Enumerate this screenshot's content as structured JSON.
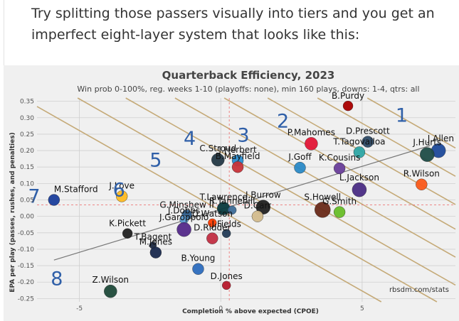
{
  "intro_text": "Try splitting those passers visually into tiers and you get an imperfect eight-layer system that looks like this:",
  "chart_data": {
    "type": "scatter",
    "title": "Quarterback Efficiency, 2023",
    "subtitle": "Win prob 0-100%, reg. weeks 1-10 (playoffs: none), min 160 plays, downs: 1-4, qtrs: all",
    "xlabel": "Completion % above expected (CPOE)",
    "ylabel": "EPA per play (passes, rushes, and penalties)",
    "credit": "rbsdm.com/stats",
    "xlim": [
      -6.5,
      8.3
    ],
    "ylim": [
      -0.26,
      0.36
    ],
    "x_ticks": [
      -5,
      0,
      5
    ],
    "y_ticks": [
      -0.25,
      -0.2,
      -0.15,
      -0.1,
      -0.05,
      0.0,
      0.05,
      0.1,
      0.15,
      0.2,
      0.25,
      0.3,
      0.35
    ],
    "grid": true,
    "mean_x": 0.3,
    "mean_y": 0.035,
    "trend_line": [
      [
        -5.9,
        -0.133
      ],
      [
        7.4,
        0.215
      ]
    ],
    "tier_line_slope": -0.0488,
    "tier_line_intercepts": [
      0.613,
      0.527,
      0.441,
      0.366,
      0.281,
      0.196,
      0.113,
      0.017
    ],
    "tier_labels": [
      {
        "label": "1",
        "x": 6.4,
        "y": 0.307
      },
      {
        "label": "2",
        "x": 2.2,
        "y": 0.29
      },
      {
        "label": "3",
        "x": 0.8,
        "y": 0.247
      },
      {
        "label": "4",
        "x": -1.1,
        "y": 0.237
      },
      {
        "label": "5",
        "x": -2.3,
        "y": 0.171
      },
      {
        "label": "6",
        "x": -3.6,
        "y": 0.08
      },
      {
        "label": "7",
        "x": -6.6,
        "y": 0.061
      },
      {
        "label": "8",
        "x": -5.8,
        "y": -0.19
      }
    ],
    "points": [
      {
        "name": "B.Purdy",
        "x": 4.5,
        "y": 0.336,
        "color": "#aa0000",
        "r": 7
      },
      {
        "name": "D.Prescott",
        "x": 5.2,
        "y": 0.227,
        "color": "#2e4a66",
        "r": 8
      },
      {
        "name": "J.Allen",
        "x": 7.7,
        "y": 0.2,
        "color": "#1e4a9a",
        "r": 10
      },
      {
        "name": "J.Hurts",
        "x": 7.3,
        "y": 0.188,
        "color": "#1f4d48",
        "r": 10
      },
      {
        "name": "P.Mahomes",
        "x": 3.2,
        "y": 0.221,
        "color": "#e31837",
        "r": 9
      },
      {
        "name": "T.Tagovailoa",
        "x": 4.9,
        "y": 0.195,
        "color": "#2fa7a6",
        "r": 8
      },
      {
        "name": "C.Stroud",
        "x": -0.1,
        "y": 0.172,
        "color": "#243946",
        "r": 9
      },
      {
        "name": "J.Herbert",
        "x": 0.6,
        "y": 0.17,
        "color": "#2c8fd1",
        "r": 8
      },
      {
        "name": "B.Mayfield",
        "x": 0.6,
        "y": 0.15,
        "color": "#c8343a",
        "r": 8
      },
      {
        "name": "J.Goff",
        "x": 2.8,
        "y": 0.148,
        "color": "#2b8ac7",
        "r": 8
      },
      {
        "name": "K.Cousins",
        "x": 4.2,
        "y": 0.146,
        "color": "#6a3f9a",
        "r": 8
      },
      {
        "name": "R.Wilson",
        "x": 7.1,
        "y": 0.097,
        "color": "#fb5a1a",
        "r": 8
      },
      {
        "name": "L.Jackson",
        "x": 4.9,
        "y": 0.081,
        "color": "#4b2e85",
        "r": 10
      },
      {
        "name": "M.Stafford",
        "x": -5.9,
        "y": 0.05,
        "color": "#1c3f9c",
        "r": 8
      },
      {
        "name": "J.Love",
        "x": -3.5,
        "y": 0.061,
        "color": "#ffbb22",
        "r": 8
      },
      {
        "name": "T.Lawrence",
        "x": 0.1,
        "y": 0.024,
        "color": "#0b3a3f",
        "r": 9
      },
      {
        "name": "R.Tannehill",
        "x": 0.4,
        "y": 0.019,
        "color": "#3f6d98",
        "r": 6
      },
      {
        "name": "J.Burrow",
        "x": 1.5,
        "y": 0.028,
        "color": "#222222",
        "r": 10
      },
      {
        "name": "S.Howell",
        "x": 3.6,
        "y": 0.02,
        "color": "#6a2a1a",
        "r": 11
      },
      {
        "name": "G.Smith",
        "x": 4.2,
        "y": 0.013,
        "color": "#69be28",
        "r": 8
      },
      {
        "name": "G.Minshew II",
        "x": -1.2,
        "y": 0.005,
        "color": "#2f5f8f",
        "r": 7
      },
      {
        "name": "D.Carr",
        "x": 1.3,
        "y": 0.0,
        "color": "#d3bc8d",
        "r": 8
      },
      {
        "name": "J.Dobbs",
        "x": -1.3,
        "y": -0.01,
        "color": "#5c9bd1",
        "r": 6
      },
      {
        "name": "D.Watson",
        "x": -0.3,
        "y": -0.02,
        "color": "#ff3c00",
        "r": 6
      },
      {
        "name": "J.Garoppolo",
        "x": -1.3,
        "y": -0.04,
        "color": "#552a8a",
        "r": 10
      },
      {
        "name": "K.Pickett",
        "x": -3.3,
        "y": -0.052,
        "color": "#222222",
        "r": 7
      },
      {
        "name": "J.Fields",
        "x": 0.2,
        "y": -0.052,
        "color": "#243b57",
        "r": 6
      },
      {
        "name": "D.Ridder",
        "x": -0.3,
        "y": -0.067,
        "color": "#c23044",
        "r": 8
      },
      {
        "name": "T.Bagent",
        "x": -2.4,
        "y": -0.088,
        "color": "#1e2a44",
        "r": 5
      },
      {
        "name": "M.Jones",
        "x": -2.3,
        "y": -0.11,
        "color": "#1b2a4e",
        "r": 8
      },
      {
        "name": "B.Young",
        "x": -0.8,
        "y": -0.16,
        "color": "#2e6dbe",
        "r": 8
      },
      {
        "name": "D.Jones",
        "x": 0.2,
        "y": -0.21,
        "color": "#b7192b",
        "r": 6
      },
      {
        "name": "Z.Wilson",
        "x": -3.9,
        "y": -0.228,
        "color": "#1f4a3a",
        "r": 9
      }
    ]
  }
}
